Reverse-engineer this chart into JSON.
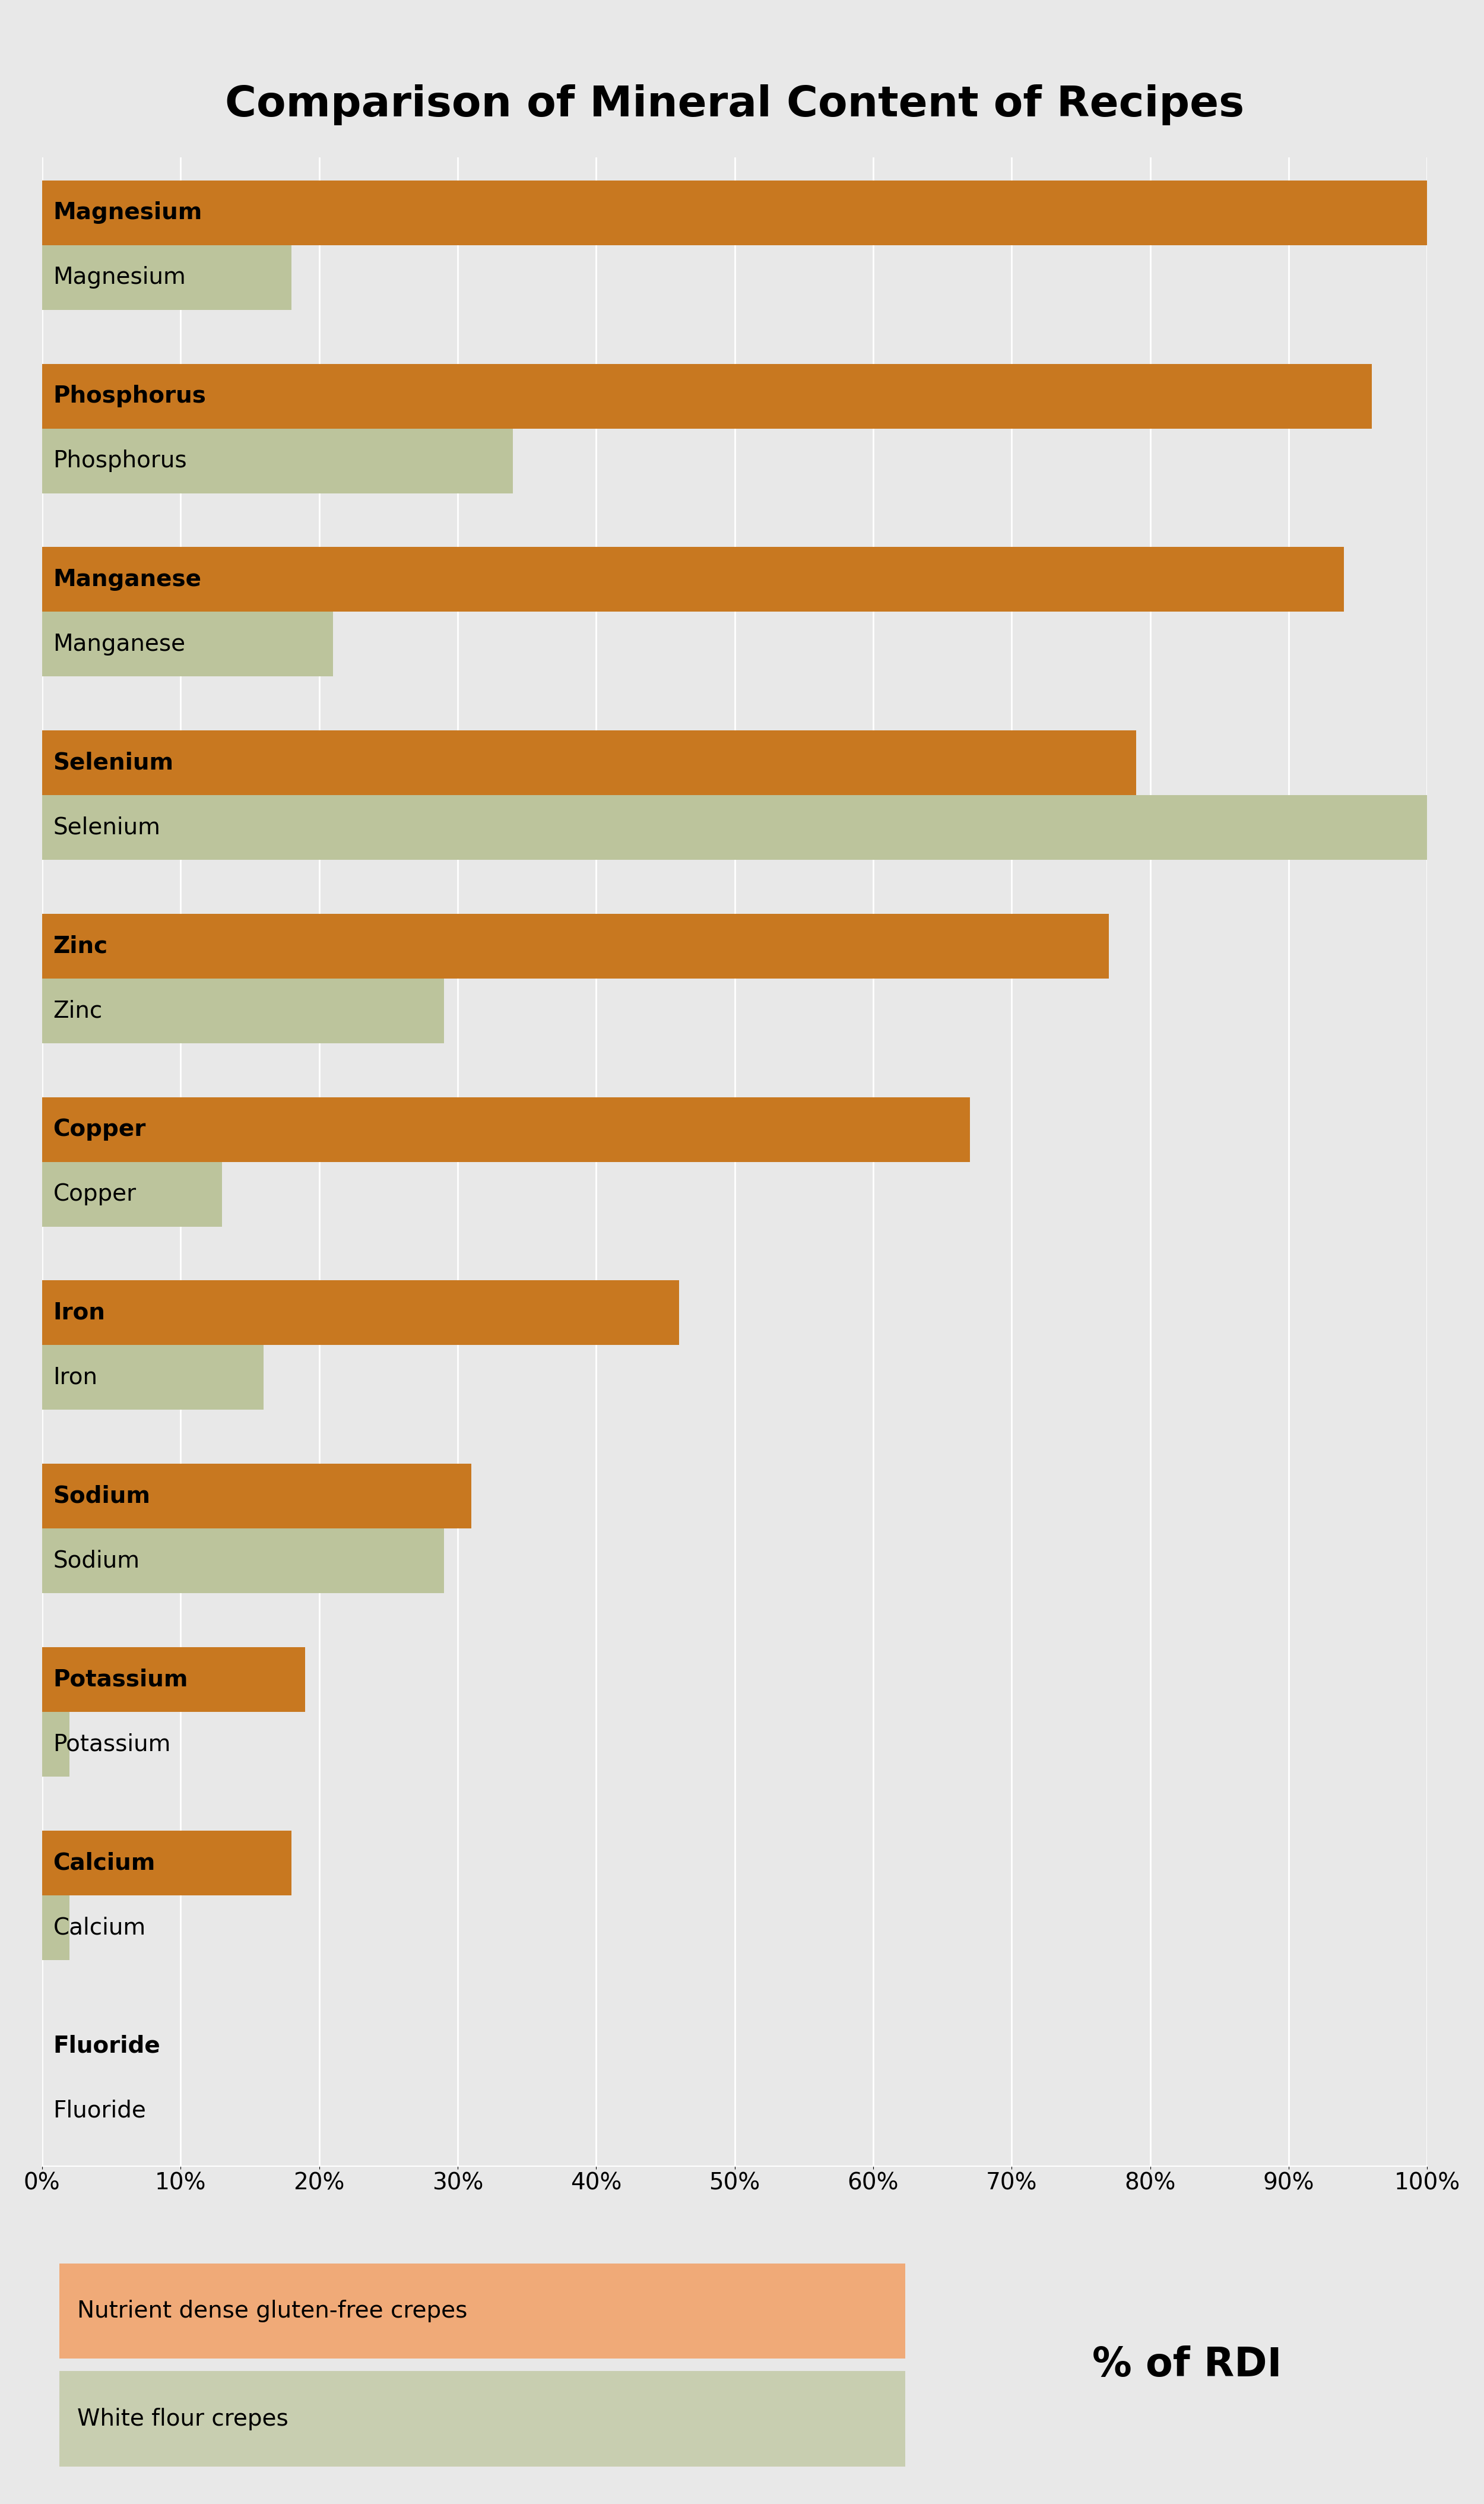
{
  "title": "Comparison of Mineral Content of Recipes",
  "minerals": [
    "Magnesium",
    "Phosphorus",
    "Manganese",
    "Selenium",
    "Zinc",
    "Copper",
    "Iron",
    "Sodium",
    "Potassium",
    "Calcium",
    "Fluoride"
  ],
  "crepe1_values": [
    100,
    96,
    94,
    79,
    77,
    67,
    46,
    31,
    19,
    18,
    0
  ],
  "crepe2_values": [
    18,
    34,
    21,
    100,
    29,
    13,
    16,
    29,
    2,
    2,
    0
  ],
  "crepe1_label": "Nutrient dense gluten-free crepes",
  "crepe2_label": "White flour crepes",
  "crepe1_bar_color": "#C87820",
  "crepe2_bar_color": "#BCC49C",
  "crepe1_legend_color": "#F0AA78",
  "crepe2_legend_color": "#C8CEB0",
  "background_color": "#E8E8E8",
  "plot_background": "#E8E8E8",
  "grid_color": "#FFFFFF",
  "title_fontsize": 52,
  "label_fontsize": 28,
  "tick_fontsize": 28,
  "legend_fontsize": 28,
  "rdi_fontsize": 48,
  "xlim": [
    0,
    100
  ],
  "xticks": [
    0,
    10,
    20,
    30,
    40,
    50,
    60,
    70,
    80,
    90,
    100
  ]
}
